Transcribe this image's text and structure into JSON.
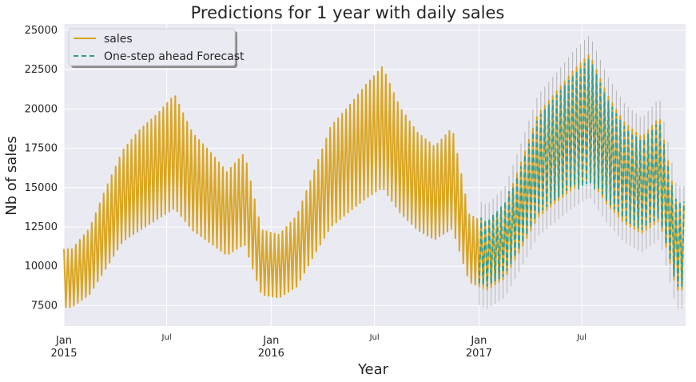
{
  "chart_data": {
    "type": "line",
    "title": "Predictions for 1 year with daily sales",
    "xlabel": "Year",
    "ylabel": "Nb of sales",
    "ylim": [
      6200,
      25400
    ],
    "yticks": [
      7500,
      10000,
      12500,
      15000,
      17500,
      20000,
      22500,
      25000
    ],
    "x_range": [
      "2015-01-01",
      "2017-12-31"
    ],
    "x_ticks": [
      {
        "date": "2015-01-01",
        "label": "Jan",
        "sublabel": "2015",
        "major": true
      },
      {
        "date": "2015-07-01",
        "label": "Jul",
        "sublabel": "",
        "major": false
      },
      {
        "date": "2016-01-01",
        "label": "Jan",
        "sublabel": "2016",
        "major": true
      },
      {
        "date": "2016-07-01",
        "label": "Jul",
        "sublabel": "",
        "major": false
      },
      {
        "date": "2017-01-01",
        "label": "Jan",
        "sublabel": "2017",
        "major": true
      },
      {
        "date": "2017-07-01",
        "label": "Jul",
        "sublabel": "",
        "major": false
      }
    ],
    "grid": true,
    "legend_position": "top-left",
    "colors": {
      "background": "#eaeaf2",
      "grid": "#ffffff",
      "sales": "#daa520",
      "forecast": "#2a9d8f",
      "confidence": "#9e9e9e"
    },
    "series": [
      {
        "name": "sales",
        "style": "solid",
        "description_points": "weekly highs/lows sampled monthly",
        "points": [
          {
            "x": "2015-01-15",
            "high": 11100,
            "low": 7400
          },
          {
            "x": "2015-02-15",
            "high": 12400,
            "low": 8200
          },
          {
            "x": "2015-03-15",
            "high": 14900,
            "low": 9800
          },
          {
            "x": "2015-04-15",
            "high": 17400,
            "low": 11600
          },
          {
            "x": "2015-05-15",
            "high": 18700,
            "low": 12300
          },
          {
            "x": "2015-06-15",
            "high": 19700,
            "low": 13000
          },
          {
            "x": "2015-07-15",
            "high": 20900,
            "low": 13700
          },
          {
            "x": "2015-08-15",
            "high": 18500,
            "low": 12300
          },
          {
            "x": "2015-09-15",
            "high": 17300,
            "low": 11500
          },
          {
            "x": "2015-10-15",
            "high": 16000,
            "low": 10700
          },
          {
            "x": "2015-11-15",
            "high": 17200,
            "low": 11400
          },
          {
            "x": "2015-12-15",
            "high": 12300,
            "low": 8200
          },
          {
            "x": "2016-01-15",
            "high": 12000,
            "low": 8000
          },
          {
            "x": "2016-02-15",
            "high": 13200,
            "low": 8700
          },
          {
            "x": "2016-03-15",
            "high": 15900,
            "low": 10600
          },
          {
            "x": "2016-04-15",
            "high": 18900,
            "low": 12500
          },
          {
            "x": "2016-05-15",
            "high": 20100,
            "low": 13400
          },
          {
            "x": "2016-06-15",
            "high": 21500,
            "low": 14300
          },
          {
            "x": "2016-07-15",
            "high": 22700,
            "low": 15000
          },
          {
            "x": "2016-08-15",
            "high": 20100,
            "low": 13400
          },
          {
            "x": "2016-09-15",
            "high": 18500,
            "low": 12300
          },
          {
            "x": "2016-10-15",
            "high": 17600,
            "low": 11700
          },
          {
            "x": "2016-11-15",
            "high": 18800,
            "low": 12400
          },
          {
            "x": "2016-12-15",
            "high": 13300,
            "low": 9000
          },
          {
            "x": "2017-01-15",
            "high": 12700,
            "low": 8500
          },
          {
            "x": "2017-02-15",
            "high": 13800,
            "low": 9200
          },
          {
            "x": "2017-03-15",
            "high": 16500,
            "low": 11000
          },
          {
            "x": "2017-04-15",
            "high": 19700,
            "low": 13100
          },
          {
            "x": "2017-05-15",
            "high": 21000,
            "low": 14000
          },
          {
            "x": "2017-06-15",
            "high": 22400,
            "low": 14900
          },
          {
            "x": "2017-07-15",
            "high": 23500,
            "low": 15600
          },
          {
            "x": "2017-08-15",
            "high": 20900,
            "low": 13900
          },
          {
            "x": "2017-09-15",
            "high": 19100,
            "low": 12700
          },
          {
            "x": "2017-10-15",
            "high": 18200,
            "low": 12100
          },
          {
            "x": "2017-11-15",
            "high": 19500,
            "low": 12900
          },
          {
            "x": "2017-12-15",
            "high": 13900,
            "low": 8500
          }
        ]
      },
      {
        "name": "One-step ahead Forecast",
        "style": "dashed",
        "x_start": "2017-01-01",
        "x_end": "2017-12-31",
        "ci_band": true
      }
    ]
  }
}
